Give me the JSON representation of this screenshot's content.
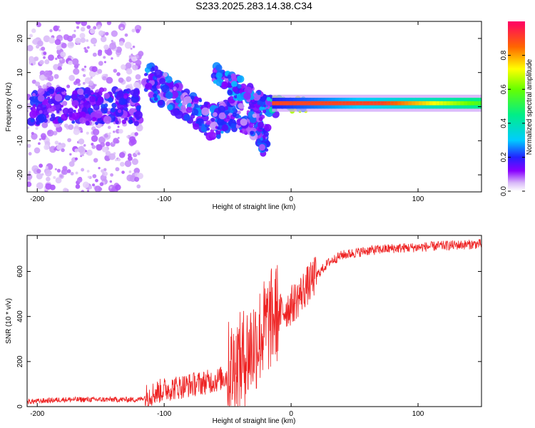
{
  "chart_data": [
    {
      "type": "heatmap",
      "title": "S233.2025.283.14.38.C34",
      "xlabel": "Height of straight line (km)",
      "ylabel": "Frequency (Hz)",
      "xlim": [
        -208,
        150
      ],
      "ylim": [
        -25,
        25
      ],
      "xticks": [
        -200,
        -100,
        0,
        100
      ],
      "xtick_labels": [
        "-200",
        "-100",
        "0",
        "100"
      ],
      "yticks": [
        -20,
        -10,
        0,
        10,
        20
      ],
      "ytick_labels": [
        "-20",
        "-10",
        "0",
        "10",
        "20"
      ],
      "colorbar": {
        "label": "Normalized spectral amplitude",
        "range": [
          0.0,
          1.0
        ],
        "ticks": [
          0.0,
          0.2,
          0.4,
          0.6,
          0.8
        ],
        "tick_labels": [
          "0.0",
          "0.2",
          "0.4",
          "0.6",
          "0.8"
        ]
      },
      "features": [
        {
          "name": "scattered noise",
          "x_range": [
            -208,
            -118
          ],
          "freq_range": [
            -25,
            25
          ],
          "amplitude": 0.03
        },
        {
          "name": "noisy band",
          "x_range": [
            -205,
            -118
          ],
          "freq_center": 0,
          "freq_width": 5,
          "amplitude": 0.12
        },
        {
          "name": "descending band",
          "points": [
            [
              -115,
              8
            ],
            [
              -100,
              5
            ],
            [
              -80,
              0
            ],
            [
              -60,
              -5
            ],
            [
              -50,
              -2
            ],
            [
              -30,
              -4
            ],
            [
              -20,
              -10
            ]
          ],
          "amplitude": 0.15
        },
        {
          "name": "converging branch",
          "points": [
            [
              -60,
              10
            ],
            [
              -40,
              5
            ],
            [
              -25,
              2
            ],
            [
              -15,
              0
            ]
          ],
          "amplitude": 0.2
        },
        {
          "name": "steady tone",
          "x_range": [
            -15,
            150
          ],
          "freq_center": 1,
          "amplitude": 0.9
        }
      ]
    },
    {
      "type": "line",
      "xlabel": "Height of straight line (km)",
      "ylabel": "SNR (10 * v/v)",
      "xlim": [
        -208,
        150
      ],
      "ylim": [
        0,
        760
      ],
      "xticks": [
        -200,
        -100,
        0,
        100
      ],
      "xtick_labels": [
        "-200",
        "-100",
        "0",
        "100"
      ],
      "yticks": [
        0,
        200,
        400,
        600
      ],
      "ytick_labels": [
        "0",
        "200",
        "400",
        "600"
      ],
      "color": "#ee2222",
      "series": [
        {
          "name": "SNR",
          "x": [
            -208,
            -180,
            -150,
            -120,
            -110,
            -100,
            -80,
            -60,
            -50,
            -40,
            -30,
            -20,
            -15,
            -10,
            -5,
            0,
            5,
            10,
            15,
            20,
            30,
            40,
            60,
            80,
            100,
            120,
            150
          ],
          "y": [
            20,
            30,
            30,
            30,
            50,
            70,
            90,
            110,
            130,
            170,
            250,
            330,
            370,
            400,
            420,
            440,
            470,
            510,
            540,
            580,
            640,
            670,
            690,
            700,
            705,
            712,
            720
          ]
        }
      ]
    }
  ]
}
